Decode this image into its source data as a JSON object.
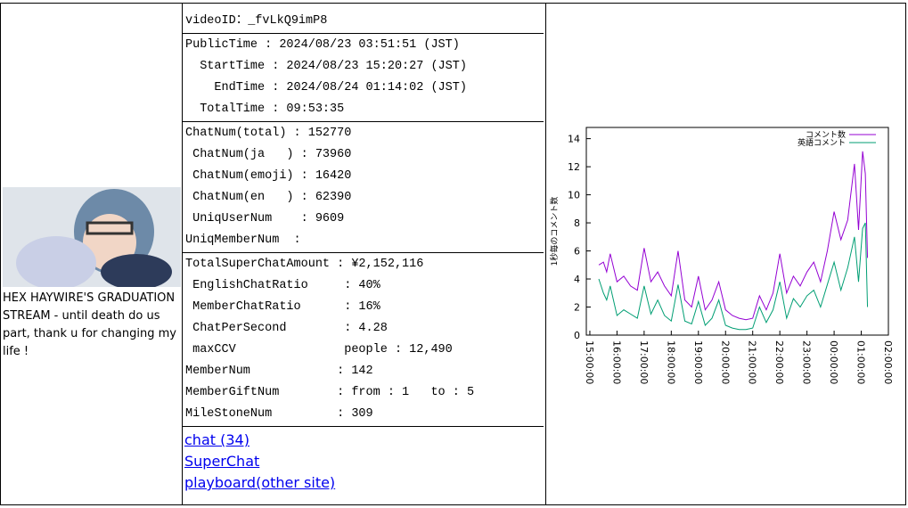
{
  "thumbnail": {
    "title": "HEX HAYWIRE'S GRADUATION STREAM - until death do us part, thank u for changing my life !"
  },
  "stats": {
    "sections": [
      [
        "videoID：_fvLkQ9imP8"
      ],
      [
        "PublicTime : 2024/08/23 03:51:51 (JST)",
        "  StartTime : 2024/08/23 15:20:27 (JST)",
        "    EndTime : 2024/08/24 01:14:02 (JST)",
        "  TotalTime : 09:53:35"
      ],
      [
        "ChatNum(total) : 152770",
        " ChatNum(ja   ) : 73960",
        " ChatNum(emoji) : 16420",
        " ChatNum(en   ) : 62390",
        " UniqUserNum    : 9609",
        "UniqMemberNum  :"
      ],
      [
        "TotalSuperChatAmount : ¥2,152,116",
        " EnglishChatRatio     : 40%",
        " MemberChatRatio      : 16%",
        " ChatPerSecond        : 4.28",
        " maxCCV               people : 12,490",
        "MemberNum            : 142",
        "MemberGiftNum        : from : 1   to : 5",
        "MileStoneNum         : 309"
      ]
    ]
  },
  "links": [
    "chat (34)",
    "SuperChat",
    "playboard(other site)"
  ],
  "chart_data": {
    "type": "line",
    "y_label": "1秒毎のコメント数",
    "x": [
      15.33,
      15.5,
      15.62,
      15.75,
      16,
      16.25,
      16.5,
      16.75,
      17,
      17.25,
      17.5,
      17.75,
      18,
      18.25,
      18.5,
      18.75,
      19,
      19.25,
      19.5,
      19.75,
      20,
      20.25,
      20.5,
      20.75,
      21,
      21.25,
      21.5,
      21.75,
      22,
      22.25,
      22.5,
      22.75,
      23,
      23.25,
      23.5,
      23.75,
      24,
      24.25,
      24.5,
      24.75,
      24.9,
      25.05,
      25.15,
      25.23
    ],
    "series": [
      {
        "name": "コメント数",
        "color": "#9400d3",
        "values": [
          5,
          5.2,
          4.5,
          5.8,
          3.8,
          4.2,
          3.5,
          3.2,
          6.2,
          3.8,
          4.5,
          3.5,
          2.8,
          6,
          2.5,
          2,
          4.2,
          1.8,
          2.5,
          3.8,
          1.8,
          1.4,
          1.2,
          1.1,
          1.2,
          2.8,
          1.8,
          3,
          5.8,
          3,
          4.2,
          3.5,
          4.5,
          5.2,
          3.8,
          6,
          8.8,
          6.8,
          8.2,
          12.2,
          7.5,
          13.1,
          11.5,
          5.5
        ]
      },
      {
        "name": "英語コメント",
        "color": "#009e73",
        "values": [
          4,
          3,
          2.5,
          3.5,
          1.4,
          1.8,
          1.5,
          1.2,
          3.5,
          1.5,
          2.5,
          1.4,
          1,
          3.6,
          1,
          0.8,
          2.4,
          0.7,
          1.2,
          2.5,
          0.7,
          0.5,
          0.4,
          0.4,
          0.5,
          2,
          0.9,
          1.8,
          3.8,
          1.2,
          2.6,
          2,
          2.8,
          3.2,
          2,
          3.6,
          5.2,
          3.2,
          4.8,
          7,
          3.8,
          7.6,
          8,
          2
        ]
      }
    ],
    "xlim": [
      14.87,
      26
    ],
    "ylim": [
      0,
      14.8
    ],
    "xticks": [
      {
        "value": 15,
        "label": "15:00:00"
      },
      {
        "value": 16,
        "label": "16:00:00"
      },
      {
        "value": 17,
        "label": "17:00:00"
      },
      {
        "value": 18,
        "label": "18:00:00"
      },
      {
        "value": 19,
        "label": "19:00:00"
      },
      {
        "value": 20,
        "label": "20:00:00"
      },
      {
        "value": 21,
        "label": "21:00:00"
      },
      {
        "value": 22,
        "label": "22:00:00"
      },
      {
        "value": 23,
        "label": "23:00:00"
      },
      {
        "value": 24,
        "label": "00:00:00"
      },
      {
        "value": 25,
        "label": "01:00:00"
      },
      {
        "value": 26,
        "label": "02:00:00"
      }
    ],
    "yticks": [
      0,
      2,
      4,
      6,
      8,
      10,
      12,
      14
    ]
  }
}
